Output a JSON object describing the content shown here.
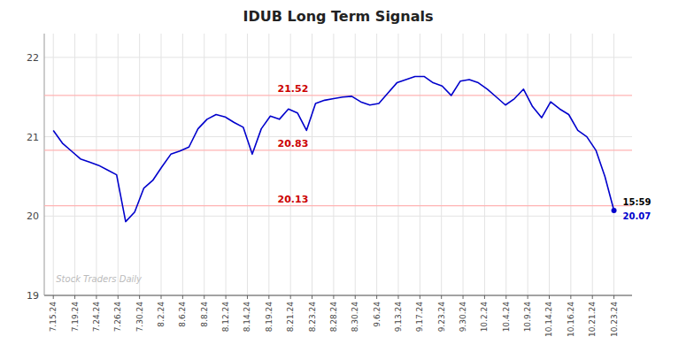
{
  "chart_data": {
    "type": "line",
    "title": "IDUB Long Term Signals",
    "x": [
      0,
      1,
      2,
      3,
      4,
      5,
      6,
      7,
      8,
      9,
      10,
      11,
      12,
      13,
      14,
      15,
      16,
      17,
      18,
      19,
      20,
      21,
      22,
      23,
      24,
      25,
      26,
      27,
      28,
      29,
      30,
      31,
      32,
      33,
      34,
      35,
      36,
      37,
      38,
      39,
      40,
      41,
      42,
      43,
      44,
      45,
      46,
      47,
      48,
      49,
      50,
      51,
      52,
      53,
      54,
      55,
      56,
      57,
      58,
      59,
      60,
      61,
      62
    ],
    "series": [
      {
        "name": "IDUB",
        "color": "#0000cc",
        "values": [
          21.08,
          20.92,
          20.82,
          20.72,
          20.68,
          20.64,
          20.58,
          20.52,
          19.93,
          20.05,
          20.35,
          20.45,
          20.62,
          20.78,
          20.82,
          20.87,
          21.1,
          21.22,
          21.28,
          21.25,
          21.18,
          21.12,
          20.78,
          21.1,
          21.26,
          21.22,
          21.35,
          21.3,
          21.08,
          21.42,
          21.46,
          21.48,
          21.5,
          21.51,
          21.44,
          21.4,
          21.42,
          21.55,
          21.68,
          21.72,
          21.76,
          21.76,
          21.68,
          21.64,
          21.52,
          21.7,
          21.72,
          21.68,
          21.6,
          21.5,
          21.4,
          21.48,
          21.6,
          21.38,
          21.24,
          21.44,
          21.35,
          21.28,
          21.08,
          21.0,
          20.83,
          20.5,
          20.07
        ]
      }
    ],
    "reference_lines": [
      {
        "value": 20.13,
        "label": "20.13",
        "color": "#cc0000"
      },
      {
        "value": 20.83,
        "label": "20.83",
        "color": "#cc0000"
      },
      {
        "value": 21.52,
        "label": "21.52",
        "color": "#cc0000"
      }
    ],
    "annotations": [
      "15:59",
      "20.07"
    ],
    "watermark": "Stock Traders Daily",
    "xlim": [
      -1,
      64
    ],
    "xticks": [
      {
        "value": 0,
        "label": "7.15.24"
      },
      {
        "value": 2.3846153846,
        "label": "7.19.24"
      },
      {
        "value": 4.7692307692,
        "label": "7.24.24"
      },
      {
        "value": 7.1538461538,
        "label": "7.26.24"
      },
      {
        "value": 9.5384615385,
        "label": "7.30.24"
      },
      {
        "value": 11.9230769231,
        "label": "8.2.24"
      },
      {
        "value": 14.3076923077,
        "label": "8.6.24"
      },
      {
        "value": 16.6923076923,
        "label": "8.8.24"
      },
      {
        "value": 19.0769230769,
        "label": "8.12.24"
      },
      {
        "value": 21.4615384615,
        "label": "8.14.24"
      },
      {
        "value": 23.8461538462,
        "label": "8.19.24"
      },
      {
        "value": 26.2307692308,
        "label": "8.21.24"
      },
      {
        "value": 28.6153846154,
        "label": "8.23.24"
      },
      {
        "value": 31,
        "label": "8.28.24"
      },
      {
        "value": 33.3846153846,
        "label": "8.30.24"
      },
      {
        "value": 35.7692307692,
        "label": "9.6.24"
      },
      {
        "value": 38.1538461538,
        "label": "9.13.24"
      },
      {
        "value": 40.5384615385,
        "label": "9.17.24"
      },
      {
        "value": 42.9230769231,
        "label": "9.23.24"
      },
      {
        "value": 45.3076923077,
        "label": "9.30.24"
      },
      {
        "value": 47.6923076923,
        "label": "10.2.24"
      },
      {
        "value": 50.0769230769,
        "label": "10.4.24"
      },
      {
        "value": 52.4615384615,
        "label": "10.9.24"
      },
      {
        "value": 54.8461538462,
        "label": "10.14.24"
      },
      {
        "value": 57.2307692308,
        "label": "10.16.24"
      },
      {
        "value": 59.6153846154,
        "label": "10.21.24"
      },
      {
        "value": 62,
        "label": "10.23.24"
      }
    ],
    "ylim": [
      19.0,
      22.3
    ],
    "yticks": [
      19,
      20,
      21,
      22
    ],
    "grid": true
  }
}
